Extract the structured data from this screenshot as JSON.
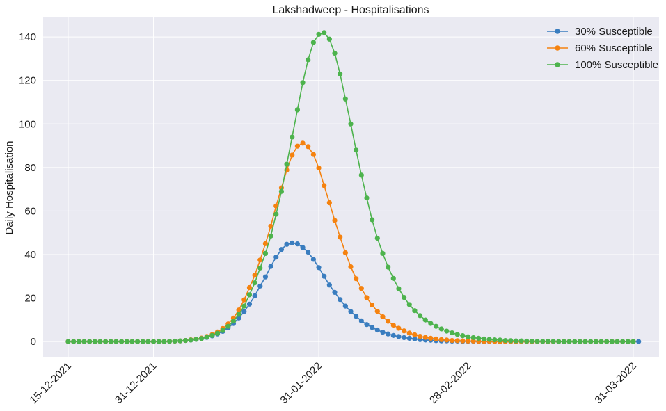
{
  "chart_data": {
    "type": "line",
    "title": "Lakshadweep - Hospitalisations",
    "xlabel": "",
    "ylabel": "Daily Hospitalisation",
    "x_start": "15-12-2021",
    "x_end": "31-03-2022",
    "x_ticks": [
      "15-12-2021",
      "31-12-2021",
      "31-01-2022",
      "28-02-2022",
      "31-03-2022"
    ],
    "ylim": [
      -7,
      149
    ],
    "y_ticks": [
      0,
      20,
      40,
      60,
      80,
      100,
      120,
      140
    ],
    "grid": true,
    "legend_position": "top-right",
    "series": [
      {
        "name": "30% Susceptible",
        "color": "#3a7dbf",
        "values": [
          0,
          0,
          0,
          0,
          0,
          0,
          0,
          0,
          0,
          0,
          0,
          0,
          0,
          0,
          0,
          0,
          0,
          0,
          0,
          0.1,
          0.2,
          0.3,
          0.5,
          0.7,
          1,
          1.4,
          1.9,
          2.6,
          3.5,
          4.7,
          6.3,
          8.3,
          10.8,
          13.8,
          17.2,
          21,
          25.5,
          29.7,
          34.5,
          38.8,
          42.3,
          44.7,
          45.3,
          44.9,
          43.2,
          41.1,
          37.8,
          34,
          30,
          26,
          22.6,
          19.3,
          16.3,
          13.8,
          11.6,
          9.5,
          7.8,
          6.5,
          5.3,
          4.3,
          3.5,
          2.8,
          2.3,
          1.8,
          1.5,
          1.2,
          0.9,
          0.7,
          0.6,
          0.4,
          0.3,
          0.3,
          0.2,
          0.2,
          0.1,
          0.1,
          0.1,
          0,
          0,
          0,
          0,
          0,
          0,
          0,
          0,
          0,
          0,
          0,
          0,
          0,
          0,
          0,
          0,
          0,
          0,
          0,
          0,
          0,
          0,
          0,
          0,
          0,
          0,
          0,
          0,
          0,
          0,
          0
        ]
      },
      {
        "name": "60% Susceptible",
        "color": "#f5820f",
        "values": [
          0,
          0,
          0,
          0,
          0,
          0,
          0,
          0,
          0,
          0,
          0,
          0,
          0,
          0,
          0,
          0,
          0,
          0,
          0,
          0.1,
          0.2,
          0.3,
          0.5,
          0.8,
          1.1,
          1.6,
          2.3,
          3.2,
          4.4,
          6,
          8.1,
          10.8,
          14.5,
          19.2,
          24.8,
          30.5,
          37.5,
          45,
          53,
          62.3,
          70.6,
          78.8,
          85.7,
          89.8,
          91.2,
          89.6,
          86,
          79.8,
          71.7,
          63.8,
          55.7,
          48,
          40.8,
          34.4,
          28.9,
          24.4,
          20.2,
          16.8,
          13.9,
          11.4,
          9.3,
          7.5,
          6.1,
          4.9,
          3.9,
          3.1,
          2.4,
          1.9,
          1.5,
          1.2,
          0.9,
          0.7,
          0.5,
          0.4,
          0.3,
          0.2,
          0.2,
          0.1,
          0.1,
          0.1,
          0,
          0,
          0,
          0,
          0,
          0,
          0,
          0,
          0,
          0,
          0,
          0,
          0,
          0,
          0,
          0,
          0,
          0,
          0,
          0,
          0,
          0,
          0,
          0,
          0,
          0,
          0
        ]
      },
      {
        "name": "100% Susceptible",
        "color": "#4db34d",
        "values": [
          0,
          0,
          0,
          0,
          0,
          0,
          0,
          0,
          0,
          0,
          0,
          0,
          0,
          0,
          0,
          0,
          0,
          0,
          0,
          0.1,
          0.2,
          0.3,
          0.5,
          0.7,
          1,
          1.4,
          2,
          2.8,
          3.8,
          5.1,
          7,
          9.4,
          12.5,
          16.3,
          21.5,
          27,
          33.8,
          40.5,
          48.5,
          58.5,
          69,
          81.5,
          94,
          106.5,
          119,
          129.5,
          137.5,
          141.2,
          142,
          139,
          132.5,
          123,
          111.5,
          100,
          88,
          76.5,
          66,
          56,
          47.5,
          40.5,
          34.2,
          29,
          24.3,
          20.3,
          17,
          14.2,
          11.9,
          9.9,
          8.3,
          7,
          5.8,
          4.8,
          4,
          3.3,
          2.7,
          2.2,
          1.8,
          1.5,
          1.2,
          1,
          0.8,
          0.7,
          0.5,
          0.4,
          0.3,
          0.3,
          0.2,
          0.2,
          0.1,
          0.1,
          0.1,
          0.1,
          0,
          0,
          0,
          0,
          0,
          0,
          0,
          0,
          0,
          0,
          0,
          0,
          0,
          0,
          0
        ]
      }
    ]
  }
}
